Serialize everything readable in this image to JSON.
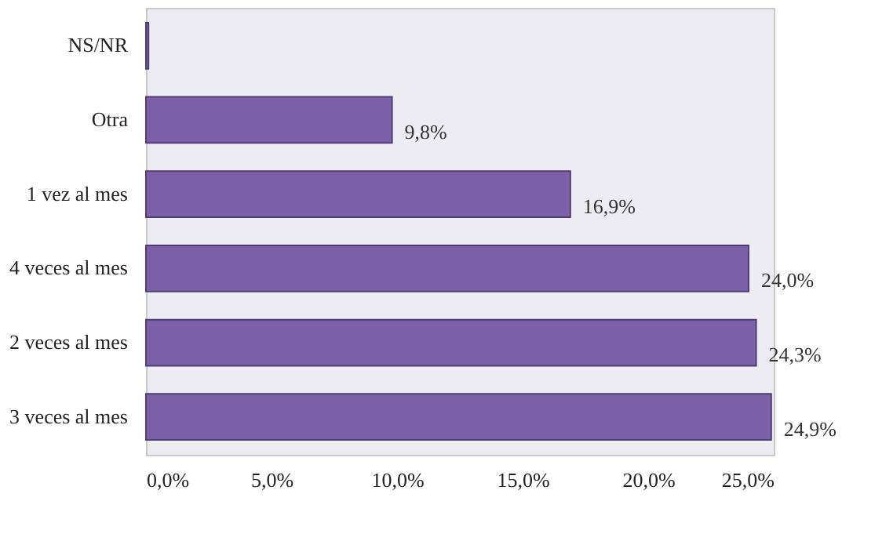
{
  "chart_data": {
    "type": "bar",
    "orientation": "horizontal",
    "categories": [
      "NS/NR",
      "Otra",
      "1 vez al mes",
      "4 veces al mes",
      "2 veces al mes",
      "3 veces al mes"
    ],
    "values": [
      0.1,
      9.8,
      16.9,
      24.0,
      24.3,
      24.9
    ],
    "value_labels": [
      null,
      "9,8%",
      "16,9%",
      "24,0%",
      "24,3%",
      "24,9%"
    ],
    "color": "#7b62a8",
    "xlim": [
      0,
      25
    ],
    "xticks": [
      {
        "value": 0,
        "label": "0,0%"
      },
      {
        "value": 5,
        "label": "5,0%"
      },
      {
        "value": 10,
        "label": "10,0%"
      },
      {
        "value": 15,
        "label": "15,0%"
      },
      {
        "value": 20,
        "label": "20,0%"
      },
      {
        "value": 25,
        "label": "25,0%"
      }
    ]
  }
}
